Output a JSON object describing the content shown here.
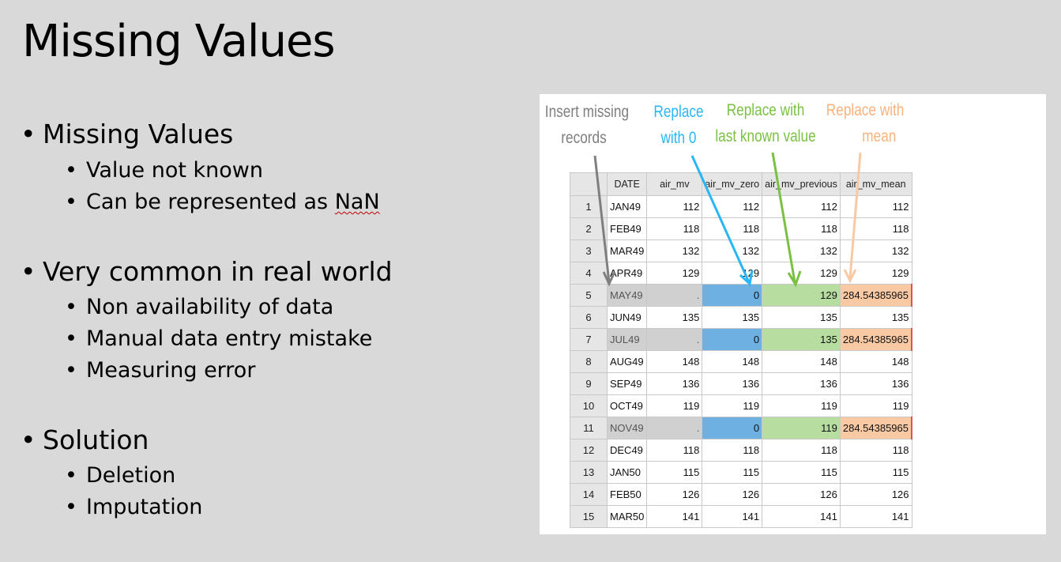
{
  "slide": {
    "title": "Missing Values",
    "sections": [
      {
        "heading": "Missing Values",
        "items": [
          "Value not known",
          "Can be represented as ",
          "NaN"
        ]
      },
      {
        "heading": "Very common in real world",
        "items": [
          "Non availability of data",
          "Manual data entry mistake",
          "Measuring error"
        ]
      },
      {
        "heading": "Solution",
        "items": [
          "Deletion",
          "Imputation"
        ]
      }
    ]
  },
  "figure": {
    "callouts": {
      "insert": [
        "Insert missing",
        "records"
      ],
      "zero": [
        "Replace",
        "with 0"
      ],
      "previous": [
        "Replace with",
        "last known value"
      ],
      "mean": [
        "Replace with",
        "mean"
      ]
    },
    "colors": {
      "insert": "#7f7f7f",
      "zero": "#29b6f6",
      "previous": "#7ac143",
      "mean": "#f9b27c"
    },
    "headers": [
      "",
      "DATE",
      "air_mv",
      "air_mv_zero",
      "air_mv_previous",
      "air_mv_mean"
    ],
    "rows": [
      {
        "n": "1",
        "date": "JAN49",
        "mv": "112",
        "zero": "112",
        "prev": "112",
        "mean": "112",
        "missing": false
      },
      {
        "n": "2",
        "date": "FEB49",
        "mv": "118",
        "zero": "118",
        "prev": "118",
        "mean": "118",
        "missing": false
      },
      {
        "n": "3",
        "date": "MAR49",
        "mv": "132",
        "zero": "132",
        "prev": "132",
        "mean": "132",
        "missing": false
      },
      {
        "n": "4",
        "date": "APR49",
        "mv": "129",
        "zero": "129",
        "prev": "129",
        "mean": "129",
        "missing": false
      },
      {
        "n": "5",
        "date": "MAY49",
        "mv": ".",
        "zero": "0",
        "prev": "129",
        "mean": "284.54385965",
        "missing": true
      },
      {
        "n": "6",
        "date": "JUN49",
        "mv": "135",
        "zero": "135",
        "prev": "135",
        "mean": "135",
        "missing": false
      },
      {
        "n": "7",
        "date": "JUL49",
        "mv": ".",
        "zero": "0",
        "prev": "135",
        "mean": "284.54385965",
        "missing": true
      },
      {
        "n": "8",
        "date": "AUG49",
        "mv": "148",
        "zero": "148",
        "prev": "148",
        "mean": "148",
        "missing": false
      },
      {
        "n": "9",
        "date": "SEP49",
        "mv": "136",
        "zero": "136",
        "prev": "136",
        "mean": "136",
        "missing": false
      },
      {
        "n": "10",
        "date": "OCT49",
        "mv": "119",
        "zero": "119",
        "prev": "119",
        "mean": "119",
        "missing": false
      },
      {
        "n": "11",
        "date": "NOV49",
        "mv": ".",
        "zero": "0",
        "prev": "119",
        "mean": "284.54385965",
        "missing": true
      },
      {
        "n": "12",
        "date": "DEC49",
        "mv": "118",
        "zero": "118",
        "prev": "118",
        "mean": "118",
        "missing": false
      },
      {
        "n": "13",
        "date": "JAN50",
        "mv": "115",
        "zero": "115",
        "prev": "115",
        "mean": "115",
        "missing": false
      },
      {
        "n": "14",
        "date": "FEB50",
        "mv": "126",
        "zero": "126",
        "prev": "126",
        "mean": "126",
        "missing": false
      },
      {
        "n": "15",
        "date": "MAR50",
        "mv": "141",
        "zero": "141",
        "prev": "141",
        "mean": "141",
        "missing": false
      }
    ]
  }
}
